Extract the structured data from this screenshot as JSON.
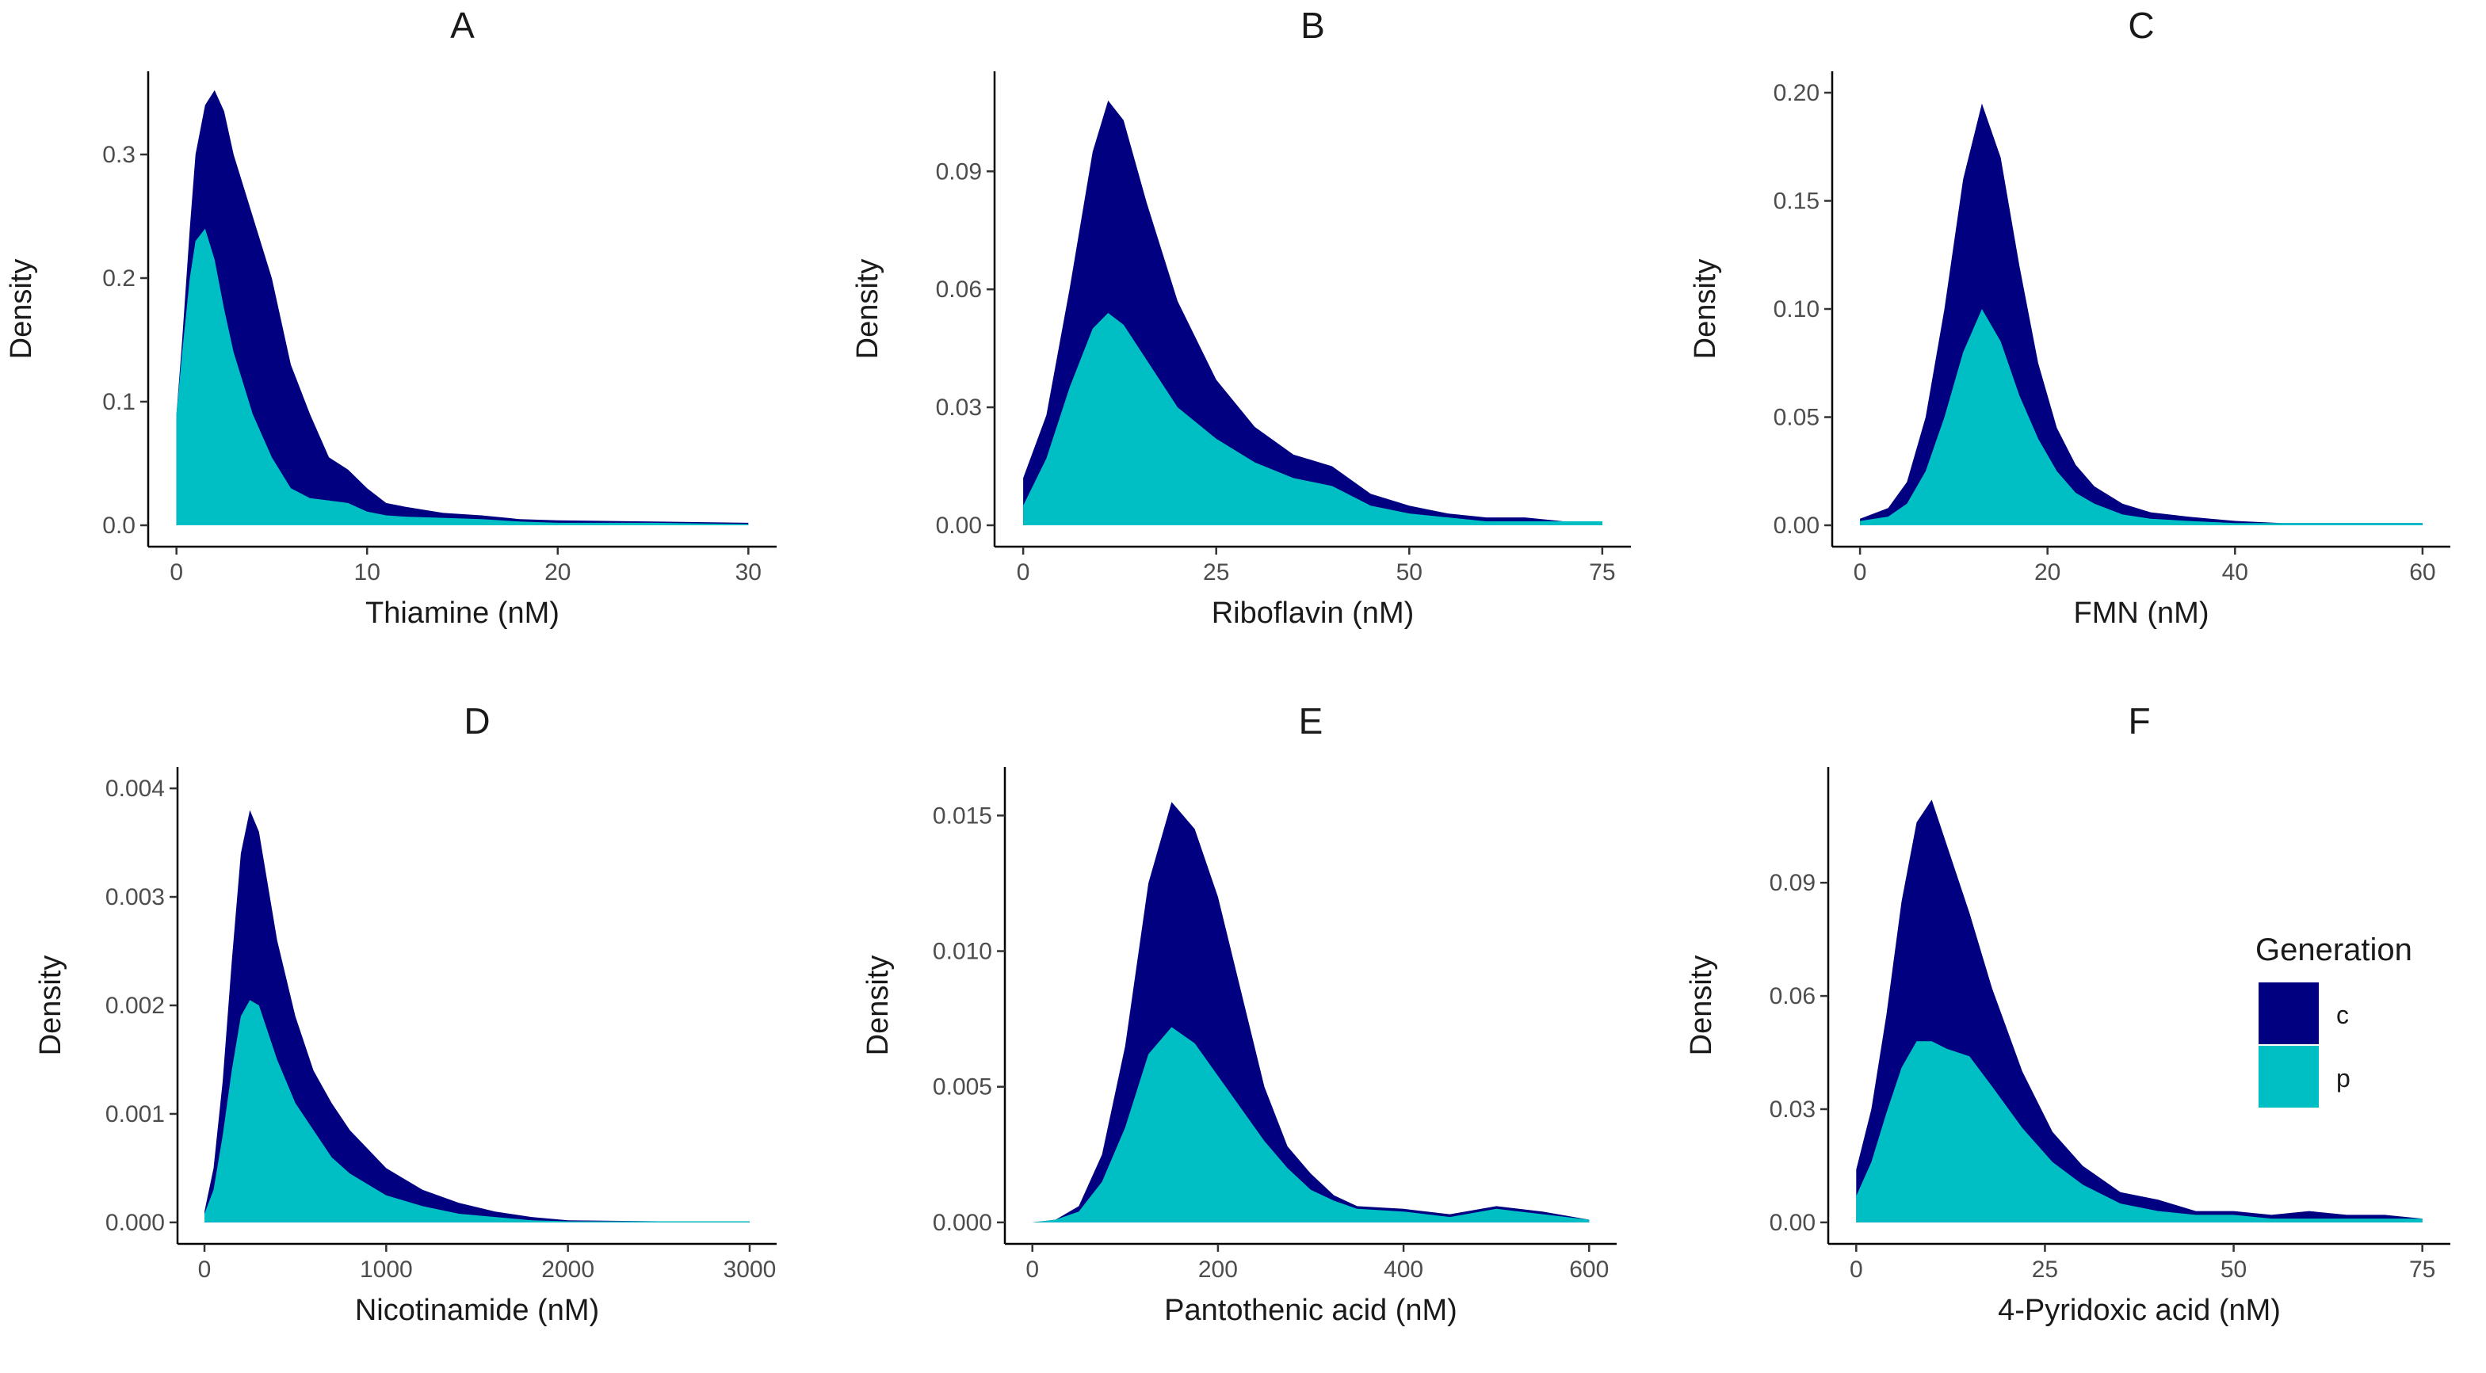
{
  "chart_data": {
    "type": "area",
    "layout": "2x3 facet grid",
    "legend": {
      "title": "Generation",
      "placement": "right",
      "entries": [
        {
          "key": "c",
          "label": "c",
          "color": "#000080"
        },
        {
          "key": "p",
          "label": "p",
          "color": "#00BFC4"
        }
      ]
    },
    "panels": [
      {
        "id": "A",
        "title": "A",
        "xlabel": "Thiamine (nM)",
        "ylabel": "Density",
        "xlim": [
          0,
          30
        ],
        "ylim": [
          0,
          0.35
        ],
        "xticks": [
          0,
          10,
          20,
          30
        ],
        "xtick_labels": [
          "0",
          "10",
          "20",
          "30"
        ],
        "yticks": [
          0,
          0.1,
          0.2,
          0.3
        ],
        "ytick_labels": [
          "0.0",
          "0.1",
          "0.2",
          "0.3"
        ],
        "series": [
          {
            "name": "p",
            "x": [
              0,
              0.3,
              0.7,
              1,
              1.5,
              2,
              2.5,
              3,
              4,
              5,
              6,
              7,
              8,
              9,
              10,
              11,
              12,
              14,
              16,
              18,
              20,
              25,
              30
            ],
            "y": [
              0.09,
              0.14,
              0.2,
              0.23,
              0.24,
              0.215,
              0.175,
              0.14,
              0.09,
              0.055,
              0.03,
              0.022,
              0.02,
              0.018,
              0.011,
              0.008,
              0.007,
              0.006,
              0.005,
              0.003,
              0.002,
              0.002,
              0.001
            ]
          },
          {
            "name": "c",
            "x": [
              0,
              0.3,
              0.7,
              1,
              1.5,
              2,
              2.5,
              3,
              4,
              5,
              6,
              7,
              8,
              9,
              10,
              11,
              12,
              14,
              16,
              18,
              20,
              25,
              30
            ],
            "y": [
              0.09,
              0.15,
              0.24,
              0.3,
              0.34,
              0.352,
              0.335,
              0.3,
              0.25,
              0.2,
              0.13,
              0.09,
              0.055,
              0.045,
              0.03,
              0.018,
              0.015,
              0.01,
              0.008,
              0.005,
              0.004,
              0.003,
              0.002
            ]
          }
        ]
      },
      {
        "id": "B",
        "title": "B",
        "xlabel": "Riboflavin (nM)",
        "ylabel": "Density",
        "xlim": [
          0,
          75
        ],
        "ylim": [
          0,
          0.11
        ],
        "xticks": [
          0,
          25,
          50,
          75
        ],
        "xtick_labels": [
          "0",
          "25",
          "50",
          "75"
        ],
        "yticks": [
          0,
          0.03,
          0.06,
          0.09
        ],
        "ytick_labels": [
          "0.00",
          "0.03",
          "0.06",
          "0.09"
        ],
        "series": [
          {
            "name": "p",
            "x": [
              0,
              3,
              6,
              9,
              11,
              13,
              16,
              20,
              25,
              30,
              35,
              40,
              45,
              50,
              55,
              60,
              65,
              70,
              75
            ],
            "y": [
              0.005,
              0.017,
              0.035,
              0.05,
              0.054,
              0.051,
              0.042,
              0.03,
              0.022,
              0.016,
              0.012,
              0.01,
              0.005,
              0.003,
              0.002,
              0.001,
              0.001,
              0.001,
              0.001
            ]
          },
          {
            "name": "c",
            "x": [
              0,
              3,
              6,
              9,
              11,
              13,
              16,
              20,
              25,
              30,
              35,
              40,
              45,
              50,
              55,
              60,
              65,
              70,
              75
            ],
            "y": [
              0.012,
              0.028,
              0.06,
              0.095,
              0.108,
              0.103,
              0.082,
              0.057,
              0.037,
              0.025,
              0.018,
              0.015,
              0.008,
              0.005,
              0.003,
              0.002,
              0.002,
              0.001,
              0.001
            ]
          }
        ]
      },
      {
        "id": "C",
        "title": "C",
        "xlabel": "FMN (nM)",
        "ylabel": "Density",
        "xlim": [
          0,
          60
        ],
        "ylim": [
          0,
          0.2
        ],
        "xticks": [
          0,
          20,
          40,
          60
        ],
        "xtick_labels": [
          "0",
          "20",
          "40",
          "60"
        ],
        "yticks": [
          0,
          0.05,
          0.1,
          0.15,
          0.2
        ],
        "ytick_labels": [
          "0.00",
          "0.05",
          "0.10",
          "0.15",
          "0.20"
        ],
        "series": [
          {
            "name": "p",
            "x": [
              0,
              3,
              5,
              7,
              9,
              11,
              13,
              15,
              17,
              19,
              21,
              23,
              25,
              28,
              31,
              35,
              40,
              45,
              50,
              55,
              60
            ],
            "y": [
              0.002,
              0.004,
              0.01,
              0.025,
              0.05,
              0.08,
              0.1,
              0.085,
              0.06,
              0.04,
              0.025,
              0.015,
              0.01,
              0.005,
              0.003,
              0.002,
              0.001,
              0.001,
              0.001,
              0.001,
              0.001
            ]
          },
          {
            "name": "c",
            "x": [
              0,
              3,
              5,
              7,
              9,
              11,
              13,
              15,
              17,
              19,
              21,
              23,
              25,
              28,
              31,
              35,
              40,
              45,
              50,
              55,
              60
            ],
            "y": [
              0.003,
              0.008,
              0.02,
              0.05,
              0.1,
              0.16,
              0.195,
              0.17,
              0.12,
              0.075,
              0.045,
              0.028,
              0.018,
              0.01,
              0.006,
              0.004,
              0.002,
              0.001,
              0.001,
              0.001,
              0.001
            ]
          }
        ]
      },
      {
        "id": "D",
        "title": "D",
        "xlabel": "Nicotinamide (nM)",
        "ylabel": "Density",
        "xlim": [
          0,
          3000
        ],
        "ylim": [
          0,
          0.004
        ],
        "xticks": [
          0,
          1000,
          2000,
          3000
        ],
        "xtick_labels": [
          "0",
          "1000",
          "2000",
          "3000"
        ],
        "yticks": [
          0,
          0.001,
          0.002,
          0.003,
          0.004
        ],
        "ytick_labels": [
          "0.000",
          "0.001",
          "0.002",
          "0.003",
          "0.004"
        ],
        "series": [
          {
            "name": "p",
            "x": [
              0,
              50,
              100,
              150,
              200,
              250,
              300,
              400,
              500,
              600,
              700,
              800,
              1000,
              1200,
              1400,
              1600,
              1800,
              2000,
              2500,
              3000
            ],
            "y": [
              8e-05,
              0.0003,
              0.0008,
              0.0014,
              0.0019,
              0.00205,
              0.002,
              0.0015,
              0.0011,
              0.00085,
              0.0006,
              0.00045,
              0.00025,
              0.00015,
              8e-05,
              5e-05,
              2e-05,
              1e-05,
              1e-05,
              1e-05
            ]
          },
          {
            "name": "c",
            "x": [
              0,
              50,
              100,
              150,
              200,
              250,
              300,
              400,
              500,
              600,
              700,
              800,
              1000,
              1200,
              1400,
              1600,
              1800,
              2000,
              2500,
              3000
            ],
            "y": [
              0.0001,
              0.0005,
              0.0013,
              0.0024,
              0.0034,
              0.0038,
              0.0036,
              0.0026,
              0.0019,
              0.0014,
              0.0011,
              0.00085,
              0.0005,
              0.0003,
              0.00018,
              0.0001,
              5e-05,
              2e-05,
              1e-05,
              1e-05
            ]
          }
        ]
      },
      {
        "id": "E",
        "title": "E",
        "xlabel": "Pantothenic acid (nM)",
        "ylabel": "Density",
        "xlim": [
          0,
          600
        ],
        "ylim": [
          0,
          0.016
        ],
        "xticks": [
          0,
          200,
          400,
          600
        ],
        "xtick_labels": [
          "0",
          "200",
          "400",
          "600"
        ],
        "yticks": [
          0,
          0.005,
          0.01,
          0.015
        ],
        "ytick_labels": [
          "0.000",
          "0.005",
          "0.010",
          "0.015"
        ],
        "series": [
          {
            "name": "p",
            "x": [
              0,
              25,
              50,
              75,
              100,
              125,
              150,
              175,
              200,
              225,
              250,
              275,
              300,
              325,
              350,
              400,
              450,
              500,
              550,
              600
            ],
            "y": [
              0,
              0.0001,
              0.0004,
              0.0015,
              0.0035,
              0.0062,
              0.0072,
              0.0066,
              0.0054,
              0.0042,
              0.003,
              0.002,
              0.0012,
              0.0008,
              0.0005,
              0.0004,
              0.0002,
              0.0005,
              0.0003,
              0.0001
            ]
          },
          {
            "name": "c",
            "x": [
              0,
              25,
              50,
              75,
              100,
              125,
              150,
              175,
              200,
              225,
              250,
              275,
              300,
              325,
              350,
              400,
              450,
              500,
              550,
              600
            ],
            "y": [
              0,
              0.0001,
              0.0006,
              0.0025,
              0.0065,
              0.0125,
              0.0155,
              0.0145,
              0.012,
              0.0085,
              0.005,
              0.0028,
              0.0018,
              0.001,
              0.0006,
              0.0005,
              0.0003,
              0.0006,
              0.0004,
              0.0001
            ]
          }
        ]
      },
      {
        "id": "F",
        "title": "F",
        "xlabel": "4-Pyridoxic acid (nM)",
        "ylabel": "Density",
        "xlim": [
          0,
          75
        ],
        "ylim": [
          0,
          0.115
        ],
        "xticks": [
          0,
          25,
          50,
          75
        ],
        "xtick_labels": [
          "0",
          "25",
          "50",
          "75"
        ],
        "yticks": [
          0,
          0.03,
          0.06,
          0.09
        ],
        "ytick_labels": [
          "0.00",
          "0.03",
          "0.06",
          "0.09"
        ],
        "series": [
          {
            "name": "p",
            "x": [
              0,
              2,
              4,
              6,
              8,
              10,
              12,
              15,
              18,
              22,
              26,
              30,
              35,
              40,
              45,
              50,
              55,
              60,
              65,
              70,
              75
            ],
            "y": [
              0.007,
              0.016,
              0.029,
              0.041,
              0.048,
              0.048,
              0.046,
              0.044,
              0.036,
              0.025,
              0.016,
              0.01,
              0.005,
              0.003,
              0.002,
              0.002,
              0.001,
              0.001,
              0.001,
              0.001,
              0.001
            ]
          },
          {
            "name": "c",
            "x": [
              0,
              2,
              4,
              6,
              8,
              10,
              12,
              15,
              18,
              22,
              26,
              30,
              35,
              40,
              45,
              50,
              55,
              60,
              65,
              70,
              75
            ],
            "y": [
              0.014,
              0.03,
              0.055,
              0.085,
              0.106,
              0.112,
              0.1,
              0.082,
              0.062,
              0.04,
              0.024,
              0.015,
              0.008,
              0.006,
              0.003,
              0.003,
              0.002,
              0.003,
              0.002,
              0.002,
              0.001
            ]
          }
        ]
      }
    ]
  }
}
